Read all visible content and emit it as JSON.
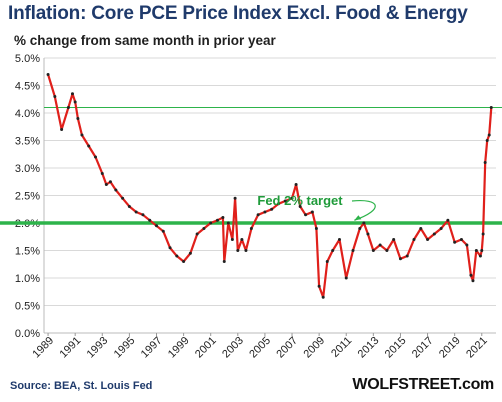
{
  "chart_data": {
    "type": "line",
    "title": "Inflation:  Core PCE Price Index Excl. Food & Energy",
    "subtitle": "% change from same month in prior year",
    "ylim": [
      0,
      5
    ],
    "y_ticks": [
      "0.0%",
      "0.5%",
      "1.0%",
      "1.5%",
      "2.0%",
      "2.5%",
      "3.0%",
      "3.5%",
      "4.0%",
      "4.5%",
      "5.0%"
    ],
    "x_ticks": [
      "1989",
      "1991",
      "1993",
      "1995",
      "1997",
      "1999",
      "2001",
      "2003",
      "2005",
      "2007",
      "2009",
      "2011",
      "2013",
      "2015",
      "2017",
      "2019",
      "2021"
    ],
    "reference_lines": [
      {
        "value": 2.0,
        "color": "#2db34a"
      },
      {
        "value": 4.1,
        "color": "#2db34a"
      }
    ],
    "annotation": "Fed 2% target",
    "series": [
      {
        "color": "#e0201b",
        "marker_color": "#222222",
        "x": [
          1989.0,
          1989.5,
          1990.0,
          1990.5,
          1990.8,
          1991.0,
          1991.2,
          1991.5,
          1992.0,
          1992.5,
          1993.0,
          1993.3,
          1993.6,
          1994.0,
          1994.5,
          1995.0,
          1995.5,
          1996.0,
          1996.5,
          1997.0,
          1997.5,
          1998.0,
          1998.5,
          1999.0,
          1999.5,
          2000.0,
          2000.5,
          2001.0,
          2001.5,
          2001.9,
          2002.0,
          2002.3,
          2002.6,
          2002.8,
          2003.0,
          2003.3,
          2003.6,
          2004.0,
          2004.5,
          2005.0,
          2005.5,
          2006.0,
          2006.5,
          2007.0,
          2007.3,
          2007.6,
          2008.0,
          2008.5,
          2008.8,
          2009.0,
          2009.3,
          2009.6,
          2010.0,
          2010.5,
          2011.0,
          2011.5,
          2012.0,
          2012.3,
          2012.6,
          2013.0,
          2013.5,
          2014.0,
          2014.5,
          2015.0,
          2015.5,
          2016.0,
          2016.5,
          2017.0,
          2017.5,
          2018.0,
          2018.5,
          2019.0,
          2019.5,
          2019.9,
          2020.2,
          2020.35,
          2020.6,
          2020.9,
          2021.0,
          2021.1,
          2021.25,
          2021.4,
          2021.55,
          2021.7
        ],
        "values": [
          4.7,
          4.3,
          3.7,
          4.1,
          4.35,
          4.2,
          3.9,
          3.6,
          3.4,
          3.2,
          2.9,
          2.7,
          2.75,
          2.6,
          2.45,
          2.3,
          2.2,
          2.15,
          2.05,
          1.95,
          1.85,
          1.55,
          1.4,
          1.3,
          1.45,
          1.8,
          1.9,
          2.0,
          2.05,
          2.1,
          1.3,
          2.0,
          1.7,
          2.45,
          1.5,
          1.7,
          1.5,
          1.9,
          2.15,
          2.2,
          2.25,
          2.35,
          2.4,
          2.45,
          2.7,
          2.3,
          2.15,
          2.2,
          1.9,
          0.85,
          0.65,
          1.3,
          1.5,
          1.7,
          1.0,
          1.5,
          1.9,
          2.0,
          1.8,
          1.5,
          1.6,
          1.5,
          1.7,
          1.35,
          1.4,
          1.7,
          1.9,
          1.7,
          1.8,
          1.9,
          2.05,
          1.65,
          1.7,
          1.6,
          1.05,
          0.95,
          1.5,
          1.4,
          1.5,
          1.8,
          3.1,
          3.5,
          3.6,
          4.1
        ]
      }
    ]
  },
  "source": "Source: BEA, St. Louis Fed",
  "brand": "WOLFSTREET.com"
}
